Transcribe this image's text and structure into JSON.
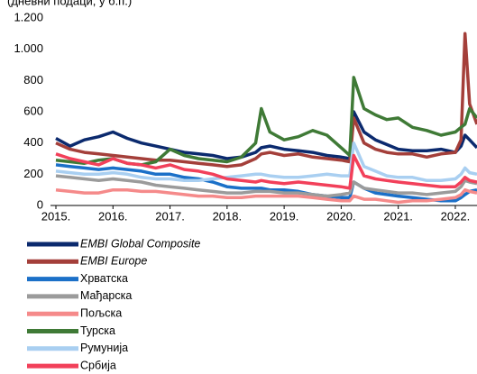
{
  "chart_data": {
    "type": "line",
    "subtitle": "(дневни подаци, у б.п.)",
    "x": [
      2015,
      2015.25,
      2015.5,
      2015.75,
      2016,
      2016.25,
      2016.5,
      2016.75,
      2017,
      2017.25,
      2017.5,
      2017.75,
      2018,
      2018.25,
      2018.5,
      2018.6,
      2018.75,
      2019,
      2019.25,
      2019.5,
      2019.75,
      2020,
      2020.15,
      2020.22,
      2020.4,
      2020.6,
      2020.8,
      2021,
      2021.25,
      2021.5,
      2021.75,
      2022,
      2022.1,
      2022.17,
      2022.25,
      2022.38
    ],
    "series": [
      {
        "name": "EMBI Global Composite",
        "color": "#0b2a6e",
        "values": [
          430,
          380,
          420,
          440,
          470,
          430,
          400,
          380,
          360,
          340,
          330,
          320,
          300,
          310,
          340,
          370,
          380,
          360,
          350,
          340,
          320,
          310,
          300,
          600,
          470,
          420,
          390,
          360,
          350,
          350,
          360,
          340,
          380,
          450,
          420,
          370
        ]
      },
      {
        "name": "EMBI Europe",
        "color": "#a43f3a",
        "values": [
          400,
          360,
          340,
          330,
          320,
          310,
          300,
          290,
          290,
          280,
          270,
          260,
          250,
          260,
          300,
          330,
          340,
          320,
          330,
          310,
          300,
          290,
          280,
          560,
          400,
          360,
          340,
          330,
          330,
          310,
          330,
          340,
          420,
          1100,
          650,
          520
        ]
      },
      {
        "name": "Хрватска",
        "color": "#1b70c8",
        "values": [
          260,
          250,
          240,
          230,
          240,
          230,
          220,
          200,
          200,
          180,
          170,
          150,
          120,
          110,
          110,
          110,
          100,
          100,
          90,
          70,
          60,
          50,
          50,
          150,
          110,
          80,
          70,
          60,
          50,
          40,
          30,
          30,
          50,
          70,
          90,
          100
        ]
      },
      {
        "name": "Мађарска",
        "color": "#9b9b9b",
        "values": [
          190,
          180,
          170,
          160,
          170,
          160,
          150,
          130,
          120,
          110,
          100,
          90,
          80,
          80,
          90,
          90,
          90,
          80,
          80,
          70,
          60,
          70,
          80,
          150,
          110,
          100,
          90,
          80,
          80,
          70,
          80,
          90,
          120,
          160,
          150,
          140
        ]
      },
      {
        "name": "Пољска",
        "color": "#f58a8a",
        "values": [
          100,
          90,
          80,
          80,
          100,
          100,
          90,
          90,
          80,
          70,
          60,
          60,
          50,
          50,
          60,
          60,
          60,
          60,
          60,
          50,
          40,
          30,
          30,
          60,
          40,
          40,
          30,
          20,
          30,
          30,
          40,
          50,
          70,
          100,
          90,
          80
        ]
      },
      {
        "name": "Турска",
        "color": "#3f7a36",
        "values": [
          290,
          280,
          270,
          290,
          300,
          270,
          260,
          280,
          360,
          320,
          300,
          290,
          280,
          310,
          400,
          620,
          470,
          420,
          440,
          480,
          450,
          370,
          320,
          820,
          620,
          580,
          550,
          560,
          500,
          480,
          450,
          470,
          500,
          520,
          620,
          560
        ]
      },
      {
        "name": "Румунија",
        "color": "#a9cff1",
        "values": [
          220,
          210,
          200,
          200,
          210,
          200,
          180,
          170,
          170,
          160,
          160,
          170,
          180,
          190,
          200,
          200,
          190,
          180,
          180,
          190,
          200,
          190,
          190,
          400,
          250,
          220,
          190,
          180,
          180,
          160,
          160,
          170,
          200,
          240,
          210,
          200
        ]
      },
      {
        "name": "Србија",
        "color": "#f2405a",
        "values": [
          330,
          300,
          280,
          260,
          300,
          270,
          260,
          240,
          260,
          230,
          220,
          200,
          170,
          160,
          150,
          160,
          150,
          140,
          150,
          140,
          130,
          120,
          110,
          320,
          190,
          170,
          160,
          150,
          140,
          130,
          120,
          120,
          150,
          180,
          160,
          150
        ]
      }
    ],
    "xlim": [
      2015,
      2022.38
    ],
    "xticks": [
      {
        "value": 2015,
        "label": "2015."
      },
      {
        "value": 2016,
        "label": "2016."
      },
      {
        "value": 2017,
        "label": "2017."
      },
      {
        "value": 2018,
        "label": "2018."
      },
      {
        "value": 2019,
        "label": "2019."
      },
      {
        "value": 2020,
        "label": "2020."
      },
      {
        "value": 2021,
        "label": "2021."
      },
      {
        "value": 2022,
        "label": "2022."
      }
    ],
    "ylim": [
      0,
      1200
    ],
    "yticks": [
      0,
      200,
      400,
      600,
      800,
      {
        "value": 1000,
        "label": "1.000"
      },
      {
        "value": 1200,
        "label": "1.200"
      }
    ],
    "grid": false,
    "legend": "bottom"
  }
}
